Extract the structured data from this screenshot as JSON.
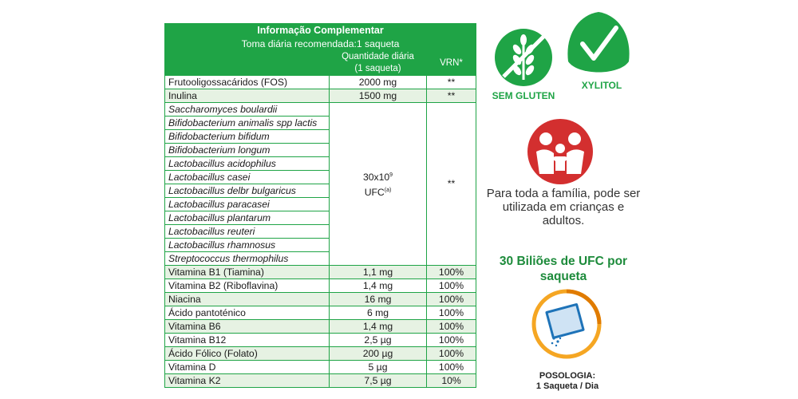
{
  "table": {
    "title": "Informação Complementar",
    "subtitle": "Toma diária recomendada:1 saqueta",
    "col_quantity_line1": "Quantidade diária",
    "col_quantity_line2": "(1 saqueta)",
    "col_vrn": "VRN*",
    "rows_top": [
      {
        "name": "Frutooligossacáridos (FOS)",
        "qty": "2000 mg",
        "vrn": "**"
      },
      {
        "name": "Inulina",
        "qty": "1500 mg",
        "vrn": "**"
      }
    ],
    "strains": [
      "Saccharomyces boulardii",
      "Bifidobacterium animalis spp lactis",
      "Bifidobacterium bifidum",
      "Bifidobacterium longum",
      "Lactobacillus acidophilus",
      "Lactobacillus casei",
      "Lactobacillus delbr bulgaricus",
      "Lactobacillus paracasei",
      "Lactobacillus plantarum",
      "Lactobacillus reuteri",
      "Lactobacillus rhamnosus",
      "Streptococcus thermophilus"
    ],
    "strains_qty_base": "30x10",
    "strains_qty_exp": "9",
    "strains_qty_unit": "UFC",
    "strains_qty_note": "(a)",
    "strains_vrn": "**",
    "rows_vitamins": [
      {
        "name": "Vitamina B1 (Tiamina)",
        "qty": "1,1 mg",
        "vrn": "100%"
      },
      {
        "name": "Vitamina B2 (Riboflavina)",
        "qty": "1,4 mg",
        "vrn": "100%"
      },
      {
        "name": "Niacina",
        "qty": "16 mg",
        "vrn": "100%"
      },
      {
        "name": "Ácido pantoténico",
        "qty": "6 mg",
        "vrn": "100%"
      },
      {
        "name": "Vitamina B6",
        "qty": "1,4 mg",
        "vrn": "100%"
      },
      {
        "name": "Vitamina B12",
        "qty": "2,5 µg",
        "vrn": "100%"
      },
      {
        "name": "Ácido Fólico (Folato)",
        "qty": "200 µg",
        "vrn": "100%"
      },
      {
        "name": "Vitamina D",
        "qty": "5 µg",
        "vrn": "100%"
      },
      {
        "name": "Vitamina K2",
        "qty": "7,5 µg",
        "vrn": "10%"
      }
    ]
  },
  "badges": {
    "gluten_label": "SEM GLUTEN",
    "xylitol_label": "XYLITOL"
  },
  "family_text": "Para toda a família, pode ser utilizada em crianças e adultos.",
  "ufc_text": "30 Biliões de UFC por saqueta",
  "posology_title": "POSOLOGIA:",
  "posology_detail": "1 Saqueta / Dia",
  "colors": {
    "brand_green": "#1fa446",
    "row_tint": "#e6f2e3",
    "family_red": "#d32f2f",
    "sachet_orange": "#f5a623",
    "sachet_blue": "#1e73b8"
  }
}
